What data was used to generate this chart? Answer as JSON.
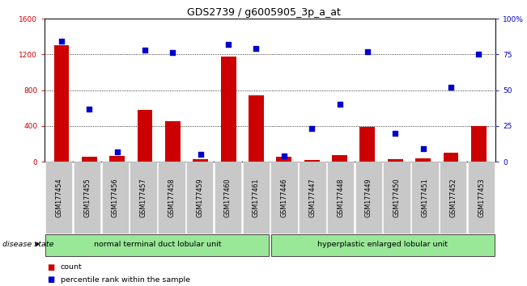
{
  "title": "GDS2739 / g6005905_3p_a_at",
  "categories": [
    "GSM177454",
    "GSM177455",
    "GSM177456",
    "GSM177457",
    "GSM177458",
    "GSM177459",
    "GSM177460",
    "GSM177461",
    "GSM177446",
    "GSM177447",
    "GSM177448",
    "GSM177449",
    "GSM177450",
    "GSM177451",
    "GSM177452",
    "GSM177453"
  ],
  "counts": [
    1300,
    50,
    60,
    580,
    450,
    25,
    1175,
    740,
    50,
    15,
    75,
    390,
    30,
    40,
    100,
    400
  ],
  "percentiles": [
    84,
    37,
    7,
    78,
    76,
    5,
    82,
    79,
    4,
    23,
    40,
    77,
    20,
    9,
    52,
    75
  ],
  "group1_label": "normal terminal duct lobular unit",
  "group2_label": "hyperplastic enlarged lobular unit",
  "group1_count": 8,
  "group2_count": 8,
  "bar_color": "#cc0000",
  "dot_color": "#0000cc",
  "ylim_left": [
    0,
    1600
  ],
  "ylim_right": [
    0,
    100
  ],
  "yticks_left": [
    0,
    400,
    800,
    1200,
    1600
  ],
  "yticks_right": [
    0,
    25,
    50,
    75,
    100
  ],
  "yticklabels_right": [
    "0",
    "25",
    "50",
    "75",
    "100%"
  ],
  "grid_values": [
    400,
    800,
    1200
  ],
  "group1_color": "#98e898",
  "group2_color": "#98e898",
  "disease_state_label": "disease state",
  "legend_count_label": "count",
  "legend_percentile_label": "percentile rank within the sample",
  "bar_width": 0.55,
  "title_fontsize": 9,
  "axis_fontsize": 7.5,
  "tick_fontsize": 6.5
}
